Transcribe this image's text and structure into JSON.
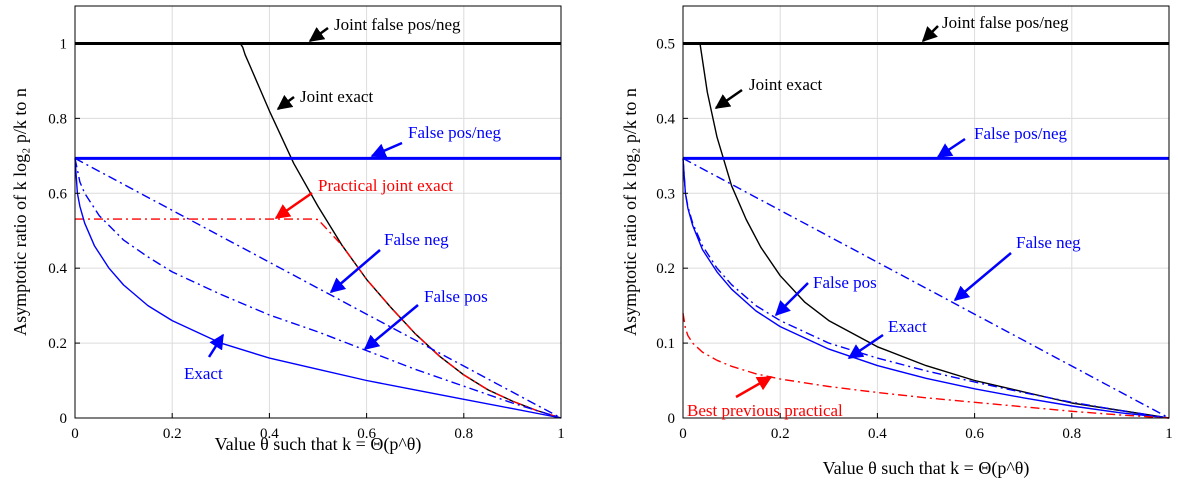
{
  "chart_data": [
    {
      "type": "line",
      "xlabel": "Value θ such that k = Θ(p^θ)",
      "ylabel": "Asymptotic ratio of k log₂ p/k to n",
      "xlim": [
        0,
        1
      ],
      "ylim": [
        0,
        1.1
      ],
      "xticks": [
        0,
        0.2,
        0.4,
        0.6,
        0.8,
        1
      ],
      "xtick_labels": [
        "0",
        "0.2",
        "0.4",
        "0.6",
        "0.8",
        "1"
      ],
      "yticks": [
        0,
        0.2,
        0.4,
        0.6,
        0.8,
        1
      ],
      "ytick_labels": [
        "0",
        "0.2",
        "0.4",
        "0.6",
        "0.8",
        "1"
      ],
      "grid": true,
      "series": [
        {
          "name": "Joint false pos/neg",
          "color": "#000000",
          "style": "solid-thick",
          "x": [
            0,
            1
          ],
          "y": [
            1,
            1
          ]
        },
        {
          "name": "Joint exact",
          "color": "#000000",
          "style": "solid",
          "x": [
            0,
            0.34,
            0.345,
            0.35,
            0.36,
            0.38,
            0.4,
            0.45,
            0.5,
            0.55,
            0.6,
            0.65,
            0.7,
            0.75,
            0.8,
            0.85,
            0.9,
            0.95,
            1
          ],
          "y": [
            1,
            1,
            0.99,
            0.97,
            0.94,
            0.88,
            0.82,
            0.68,
            0.565,
            0.46,
            0.37,
            0.295,
            0.225,
            0.165,
            0.115,
            0.075,
            0.045,
            0.02,
            0
          ]
        },
        {
          "name": "False pos/neg",
          "color": "#0000ff",
          "style": "solid-thick",
          "x": [
            0,
            1
          ],
          "y": [
            0.693,
            0.693
          ]
        },
        {
          "name": "Practical joint exact",
          "color": "#ff0000",
          "style": "dashdot",
          "x": [
            0,
            0.49,
            0.5,
            0.55,
            0.6,
            0.65,
            0.7,
            0.75,
            0.8,
            0.85,
            0.9,
            0.95,
            1
          ],
          "y": [
            0.531,
            0.531,
            0.53,
            0.46,
            0.37,
            0.295,
            0.225,
            0.165,
            0.115,
            0.075,
            0.045,
            0.02,
            0
          ]
        },
        {
          "name": "False neg",
          "color": "#0000ff",
          "style": "dashdot",
          "x": [
            0,
            1
          ],
          "y": [
            0.693,
            0
          ]
        },
        {
          "name": "False pos",
          "color": "#0000ff",
          "style": "dashdot",
          "x": [
            0,
            0.01,
            0.02,
            0.05,
            0.1,
            0.15,
            0.2,
            0.3,
            0.4,
            0.5,
            0.6,
            0.7,
            0.8,
            0.9,
            1
          ],
          "y": [
            0.693,
            0.63,
            0.6,
            0.54,
            0.475,
            0.43,
            0.39,
            0.33,
            0.275,
            0.23,
            0.18,
            0.13,
            0.085,
            0.04,
            0
          ]
        },
        {
          "name": "Exact",
          "color": "#0000ff",
          "style": "solid",
          "x": [
            0,
            0.005,
            0.01,
            0.02,
            0.04,
            0.07,
            0.1,
            0.15,
            0.2,
            0.3,
            0.4,
            0.5,
            0.6,
            0.7,
            0.8,
            0.9,
            1
          ],
          "y": [
            0.693,
            0.6,
            0.565,
            0.52,
            0.46,
            0.4,
            0.355,
            0.3,
            0.26,
            0.2,
            0.16,
            0.13,
            0.1,
            0.075,
            0.05,
            0.025,
            0
          ]
        }
      ],
      "annotations": [
        {
          "text": "Joint false pos/neg",
          "color": "#000000"
        },
        {
          "text": "Joint exact",
          "color": "#000000"
        },
        {
          "text": "False pos/neg",
          "color": "#0000ff"
        },
        {
          "text": "Practical joint exact",
          "color": "#ff0000"
        },
        {
          "text": "False neg",
          "color": "#0000ff"
        },
        {
          "text": "False pos",
          "color": "#0000ff"
        },
        {
          "text": "Exact",
          "color": "#0000ff"
        }
      ]
    },
    {
      "type": "line",
      "xlabel": "Value θ such that k = Θ(p^θ)",
      "ylabel": "Asymptotic ratio of k log₂ p/k to n",
      "xlim": [
        0,
        1
      ],
      "ylim": [
        0,
        0.55
      ],
      "xticks": [
        0,
        0.2,
        0.4,
        0.6,
        0.8,
        1
      ],
      "xtick_labels": [
        "0",
        "0.2",
        "0.4",
        "0.6",
        "0.8",
        "1"
      ],
      "yticks": [
        0,
        0.1,
        0.2,
        0.3,
        0.4,
        0.5
      ],
      "ytick_labels": [
        "0",
        "0.1",
        "0.2",
        "0.3",
        "0.4",
        "0.5"
      ],
      "grid": true,
      "series": [
        {
          "name": "Joint false pos/neg",
          "color": "#000000",
          "style": "solid-thick",
          "x": [
            0,
            1
          ],
          "y": [
            0.5,
            0.5
          ]
        },
        {
          "name": "Joint exact",
          "color": "#000000",
          "style": "solid",
          "x": [
            0.035,
            0.05,
            0.07,
            0.1,
            0.13,
            0.16,
            0.2,
            0.25,
            0.3,
            0.4,
            0.5,
            0.6,
            0.7,
            0.8,
            0.9,
            1
          ],
          "y": [
            0.5,
            0.435,
            0.375,
            0.31,
            0.265,
            0.228,
            0.19,
            0.155,
            0.13,
            0.095,
            0.07,
            0.05,
            0.035,
            0.02,
            0.01,
            0
          ]
        },
        {
          "name": "False pos/neg",
          "color": "#0000ff",
          "style": "solid-thick",
          "x": [
            0,
            1
          ],
          "y": [
            0.3466,
            0.3466
          ]
        },
        {
          "name": "False neg",
          "color": "#0000ff",
          "style": "dashdot",
          "x": [
            0,
            1
          ],
          "y": [
            0.3466,
            0
          ]
        },
        {
          "name": "False pos",
          "color": "#0000ff",
          "style": "dashdot",
          "x": [
            0,
            0.005,
            0.01,
            0.02,
            0.04,
            0.07,
            0.1,
            0.15,
            0.2,
            0.3,
            0.4,
            0.5,
            0.6,
            0.7,
            0.8,
            0.9,
            1
          ],
          "y": [
            0.3466,
            0.3,
            0.282,
            0.26,
            0.23,
            0.2,
            0.178,
            0.15,
            0.13,
            0.1,
            0.08,
            0.063,
            0.048,
            0.034,
            0.021,
            0.01,
            0
          ]
        },
        {
          "name": "Exact",
          "color": "#0000ff",
          "style": "solid",
          "x": [
            0,
            0.005,
            0.01,
            0.02,
            0.04,
            0.07,
            0.1,
            0.15,
            0.2,
            0.3,
            0.4,
            0.5,
            0.6,
            0.7,
            0.8,
            0.9,
            1
          ],
          "y": [
            0.3466,
            0.3,
            0.28,
            0.257,
            0.225,
            0.195,
            0.172,
            0.143,
            0.122,
            0.092,
            0.07,
            0.053,
            0.039,
            0.027,
            0.016,
            0.007,
            0
          ]
        },
        {
          "name": "Best previous practical",
          "color": "#ff0000",
          "style": "dashdot",
          "x": [
            0,
            0.005,
            0.01,
            0.02,
            0.04,
            0.07,
            0.1,
            0.15,
            0.2,
            0.3,
            0.4,
            0.5,
            0.6,
            0.7,
            0.8,
            0.9,
            1
          ],
          "y": [
            0.14,
            0.12,
            0.11,
            0.1,
            0.088,
            0.077,
            0.069,
            0.059,
            0.052,
            0.042,
            0.034,
            0.027,
            0.021,
            0.015,
            0.009,
            0.004,
            0
          ]
        }
      ],
      "annotations": [
        {
          "text": "Joint false pos/neg",
          "color": "#000000"
        },
        {
          "text": "Joint exact",
          "color": "#000000"
        },
        {
          "text": "False pos/neg",
          "color": "#0000ff"
        },
        {
          "text": "False neg",
          "color": "#0000ff"
        },
        {
          "text": "False pos",
          "color": "#0000ff"
        },
        {
          "text": "Exact",
          "color": "#0000ff"
        },
        {
          "text": "Best previous practical",
          "color": "#ff0000"
        }
      ]
    }
  ]
}
